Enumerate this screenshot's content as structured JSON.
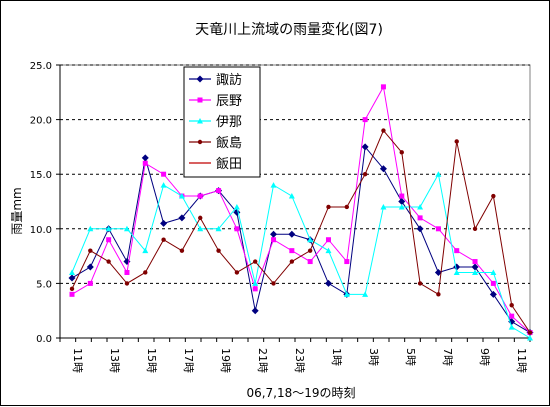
{
  "chart_data": {
    "type": "line",
    "title": "天竜川上流域の雨量変化(図7)",
    "xlabel": "06,7,18〜19の時刻",
    "ylabel": "雨量mm",
    "ylim": [
      0,
      25
    ],
    "yticks": [
      "0.0",
      "5.0",
      "10.0",
      "15.0",
      "20.0",
      "25.0"
    ],
    "grid": "horizontal dashed",
    "legend_position": "top-left",
    "x_count": 31,
    "x_tick_labels": [
      "11時",
      "13時",
      "15時",
      "17時",
      "19時",
      "21時",
      "23時",
      "1時",
      "3時",
      "5時",
      "7時",
      "9時",
      "11時"
    ],
    "series": [
      {
        "name": "諏訪",
        "color": "#000080",
        "marker": "diamond",
        "values": [
          5.5,
          6.5,
          10,
          7,
          16.5,
          10.5,
          11,
          13,
          13.5,
          11.5,
          2.5,
          9.5,
          9.5,
          9,
          5,
          4,
          17.5,
          15.5,
          12.5,
          10,
          6,
          6.5,
          6.5,
          4,
          1.5,
          0.5
        ]
      },
      {
        "name": "辰野",
        "color": "#FF00FF",
        "marker": "square",
        "values": [
          4,
          5,
          9,
          6,
          16,
          15,
          13,
          13,
          13.5,
          10,
          4.5,
          9,
          8,
          7,
          9,
          7,
          20,
          23,
          13,
          11,
          10,
          8,
          7,
          5,
          2,
          0.5
        ]
      },
      {
        "name": "伊那",
        "color": "#00FFFF",
        "marker": "triangle",
        "values": [
          6,
          10,
          10,
          10,
          8,
          14,
          13,
          10,
          10,
          12,
          5,
          14,
          13,
          9,
          8,
          4,
          4,
          12,
          12,
          12,
          15,
          6,
          6,
          6,
          1,
          0
        ]
      },
      {
        "name": "飯島",
        "color": "#800000",
        "marker": "circle",
        "values": [
          4.5,
          8,
          7,
          5,
          6,
          9,
          8,
          11,
          8,
          6,
          7,
          5,
          7,
          8,
          12,
          12,
          15,
          19,
          17,
          5,
          4,
          18,
          10,
          13,
          3,
          0.5
        ]
      },
      {
        "name": "飯田",
        "color": "#C00000",
        "marker": "none",
        "values": [
          null,
          null,
          null,
          null,
          null,
          null,
          null,
          null,
          null,
          null,
          null,
          null,
          null,
          null,
          null,
          null,
          null,
          null,
          null,
          null,
          null,
          null,
          null,
          null,
          null,
          null,
          null,
          null,
          null,
          null,
          null
        ]
      }
    ]
  }
}
